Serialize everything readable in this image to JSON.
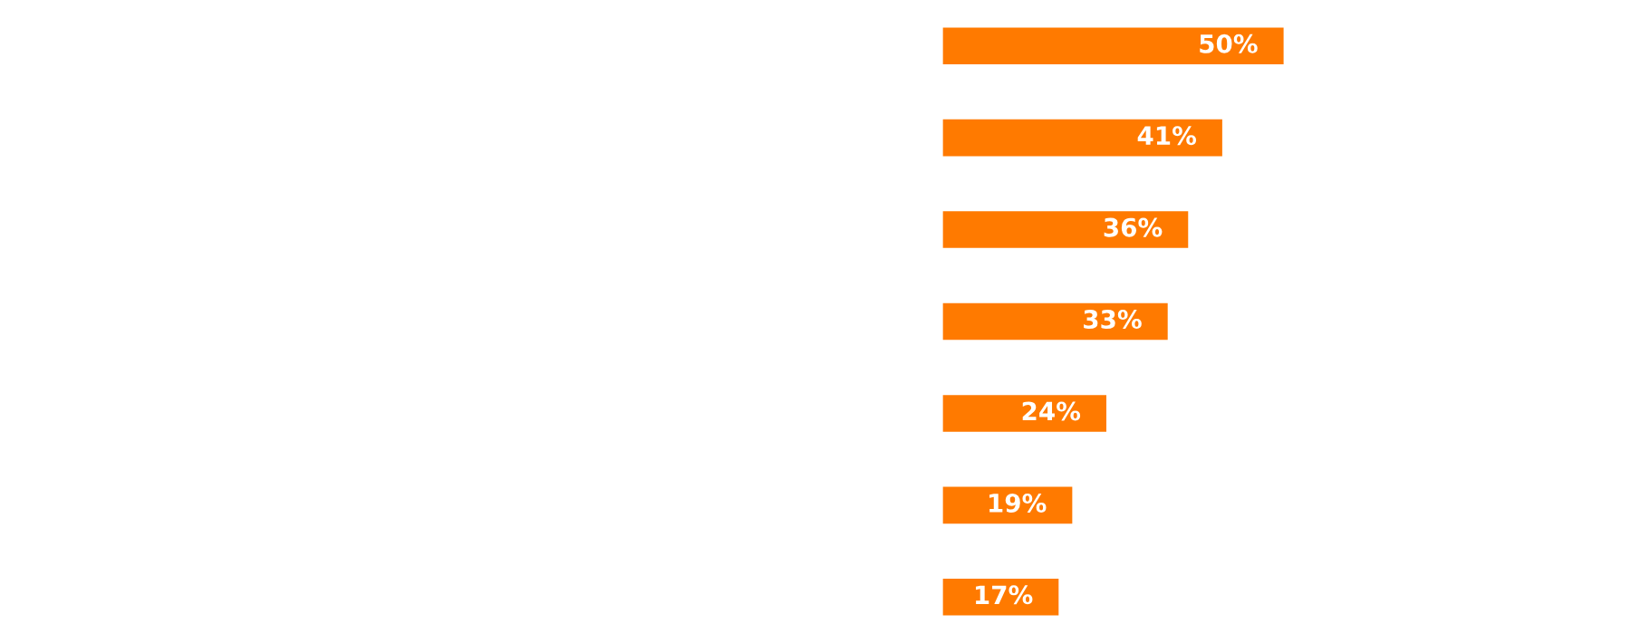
{
  "chart_data": {
    "type": "bar",
    "orientation": "horizontal",
    "categories": [
      null,
      null,
      null,
      null,
      null,
      null,
      null
    ],
    "values": [
      50,
      41,
      36,
      33,
      24,
      19,
      17
    ],
    "color": "#ff7a00",
    "value_labels": [
      "50%",
      "41%",
      "36%",
      "33%",
      "24%",
      "19%",
      "17%"
    ],
    "grid": false,
    "legend": false
  }
}
